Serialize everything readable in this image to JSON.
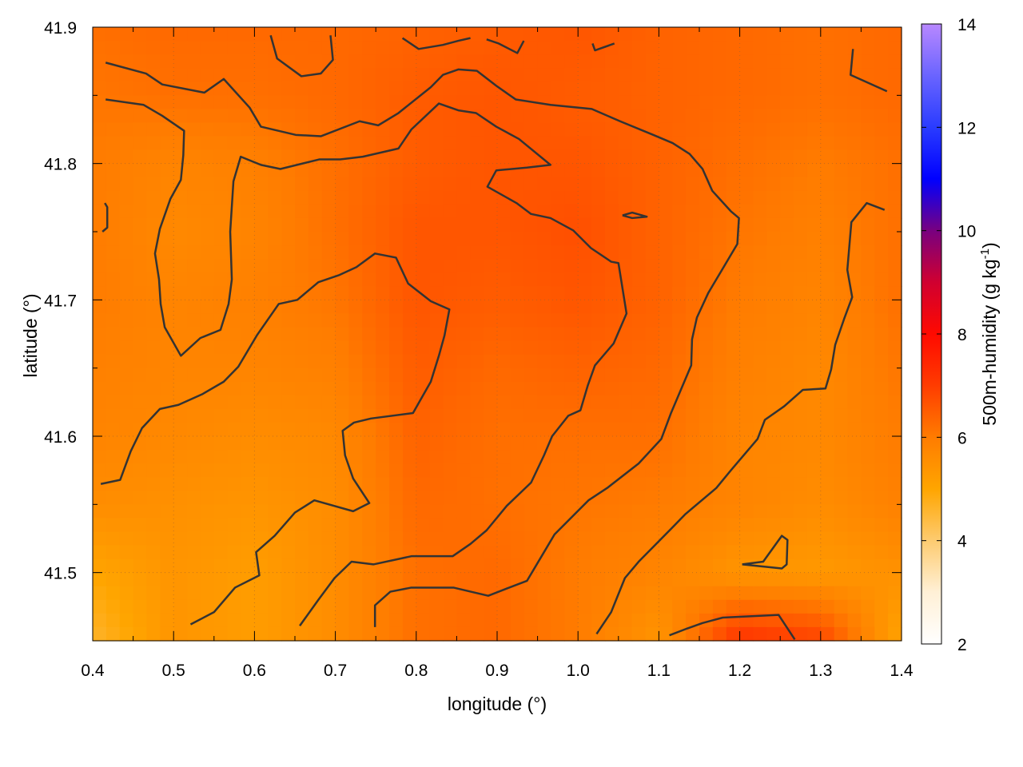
{
  "chart_data": {
    "type": "heatmap",
    "xlabel": "longitude (°)",
    "ylabel": "latitude (°)",
    "colorbar_label": "500m-humidity (g kg",
    "colorbar_label_sup": "-1",
    "colorbar_label_end": ")",
    "xlim": [
      0.4,
      1.4
    ],
    "ylim": [
      41.45,
      41.9
    ],
    "clim": [
      2,
      14
    ],
    "grid": true,
    "x_ticks": [
      "0.4",
      "0.5",
      "0.6",
      "0.7",
      "0.8",
      "0.9",
      "1.0",
      "1.1",
      "1.2",
      "1.3",
      "1.4"
    ],
    "y_ticks": [
      "41.5",
      "41.6",
      "41.7",
      "41.8",
      "41.9"
    ],
    "colorbar_ticks": [
      "2",
      "4",
      "6",
      "8",
      "10",
      "12",
      "14"
    ],
    "colormap": [
      {
        "v": 2,
        "color": "#ffffff"
      },
      {
        "v": 3,
        "color": "#fff0d6"
      },
      {
        "v": 4,
        "color": "#fdcb70"
      },
      {
        "v": 5,
        "color": "#ffa500"
      },
      {
        "v": 6,
        "color": "#ff7c00"
      },
      {
        "v": 7,
        "color": "#ff3c00"
      },
      {
        "v": 8,
        "color": "#ff0a00"
      },
      {
        "v": 9,
        "color": "#d00030"
      },
      {
        "v": 10,
        "color": "#780080"
      },
      {
        "v": 11,
        "color": "#0000ff"
      },
      {
        "v": 12,
        "color": "#2a3cff"
      },
      {
        "v": 13,
        "color": "#6a64ff"
      },
      {
        "v": 14,
        "color": "#b888ff"
      }
    ],
    "grid_lon": [
      0.4,
      0.5,
      0.6,
      0.7,
      0.8,
      0.9,
      1.0,
      1.1,
      1.2,
      1.3,
      1.4
    ],
    "grid_lat": [
      41.9,
      41.85,
      41.8,
      41.75,
      41.7,
      41.65,
      41.6,
      41.55,
      41.5,
      41.45
    ],
    "values": [
      [
        6.2,
        6.3,
        6.3,
        6.3,
        6.4,
        6.5,
        6.6,
        6.4,
        6.3,
        6.2,
        6.3
      ],
      [
        6.1,
        6.2,
        6.2,
        6.3,
        6.5,
        6.6,
        6.5,
        6.4,
        6.3,
        6.2,
        6.3
      ],
      [
        6.0,
        5.8,
        5.9,
        6.2,
        6.5,
        6.6,
        6.6,
        6.4,
        6.2,
        6.0,
        6.2
      ],
      [
        6.0,
        5.7,
        5.8,
        6.2,
        6.6,
        6.6,
        6.7,
        6.4,
        6.1,
        5.9,
        6.2
      ],
      [
        6.0,
        5.8,
        5.9,
        6.1,
        6.6,
        6.5,
        6.6,
        6.4,
        6.0,
        5.8,
        6.2
      ],
      [
        5.9,
        5.8,
        5.8,
        5.9,
        6.5,
        6.3,
        6.4,
        6.3,
        5.9,
        5.7,
        6.1
      ],
      [
        5.8,
        5.7,
        5.6,
        5.7,
        6.4,
        6.2,
        6.2,
        6.2,
        5.8,
        5.7,
        6.0
      ],
      [
        5.6,
        5.5,
        5.4,
        5.6,
        6.3,
        6.2,
        6.1,
        6.0,
        5.8,
        5.6,
        5.9
      ],
      [
        5.0,
        5.4,
        5.2,
        5.6,
        6.2,
        6.3,
        6.0,
        5.8,
        5.4,
        5.3,
        5.5
      ],
      [
        4.6,
        5.4,
        5.2,
        5.6,
        6.2,
        6.3,
        6.0,
        5.4,
        7.2,
        6.9,
        5.0
      ]
    ],
    "contour_color": "#333333",
    "contours": [
      [
        [
          0.416,
          41.874
        ],
        [
          0.466,
          41.866
        ],
        [
          0.486,
          41.858
        ],
        [
          0.538,
          41.852
        ],
        [
          0.562,
          41.862
        ],
        [
          0.594,
          41.841
        ],
        [
          0.608,
          41.827
        ],
        [
          0.651,
          41.821
        ],
        [
          0.682,
          41.82
        ],
        [
          0.73,
          41.831
        ],
        [
          0.753,
          41.828
        ],
        [
          0.778,
          41.837
        ],
        [
          0.818,
          41.856
        ],
        [
          0.833,
          41.865
        ],
        [
          0.852,
          41.869
        ],
        [
          0.875,
          41.868
        ],
        [
          0.899,
          41.857
        ],
        [
          0.923,
          41.847
        ],
        [
          0.966,
          41.843
        ],
        [
          1.017,
          41.84
        ],
        [
          1.052,
          41.831
        ],
        [
          1.093,
          41.821
        ],
        [
          1.117,
          41.815
        ],
        [
          1.138,
          41.807
        ],
        [
          1.154,
          41.796
        ],
        [
          1.166,
          41.78
        ],
        [
          1.189,
          41.765
        ],
        [
          1.199,
          41.76
        ],
        [
          1.197,
          41.741
        ],
        [
          1.179,
          41.723
        ],
        [
          1.161,
          41.705
        ],
        [
          1.147,
          41.687
        ],
        [
          1.141,
          41.671
        ],
        [
          1.14,
          41.652
        ],
        [
          1.115,
          41.617
        ],
        [
          1.103,
          41.598
        ],
        [
          1.075,
          41.58
        ],
        [
          1.036,
          41.562
        ],
        [
          1.013,
          41.553
        ],
        [
          0.971,
          41.528
        ],
        [
          0.958,
          41.515
        ],
        [
          0.937,
          41.494
        ],
        [
          0.915,
          41.489
        ],
        [
          0.889,
          41.483
        ],
        [
          0.846,
          41.489
        ],
        [
          0.794,
          41.489
        ],
        [
          0.768,
          41.486
        ],
        [
          0.749,
          41.476
        ],
        [
          0.749,
          41.46
        ]
      ],
      [
        [
          0.41,
          41.565
        ],
        [
          0.434,
          41.568
        ],
        [
          0.447,
          41.589
        ],
        [
          0.461,
          41.606
        ],
        [
          0.483,
          41.62
        ],
        [
          0.506,
          41.623
        ],
        [
          0.536,
          41.631
        ],
        [
          0.562,
          41.64
        ],
        [
          0.58,
          41.651
        ],
        [
          0.603,
          41.674
        ],
        [
          0.63,
          41.697
        ],
        [
          0.653,
          41.7
        ],
        [
          0.679,
          41.713
        ],
        [
          0.704,
          41.718
        ],
        [
          0.726,
          41.724
        ],
        [
          0.749,
          41.734
        ],
        [
          0.775,
          41.731
        ],
        [
          0.79,
          41.712
        ],
        [
          0.818,
          41.699
        ],
        [
          0.841,
          41.693
        ],
        [
          0.835,
          41.674
        ],
        [
          0.828,
          41.659
        ],
        [
          0.818,
          41.64
        ],
        [
          0.796,
          41.617
        ],
        [
          0.744,
          41.613
        ],
        [
          0.723,
          41.61
        ],
        [
          0.709,
          41.604
        ],
        [
          0.712,
          41.586
        ],
        [
          0.722,
          41.569
        ],
        [
          0.742,
          41.551
        ],
        [
          0.722,
          41.545
        ],
        [
          0.674,
          41.553
        ],
        [
          0.65,
          41.544
        ],
        [
          0.625,
          41.527
        ],
        [
          0.602,
          41.515
        ],
        [
          0.606,
          41.498
        ],
        [
          0.576,
          41.489
        ],
        [
          0.55,
          41.471
        ],
        [
          0.521,
          41.462
        ]
      ],
      [
        [
          0.416,
          41.847
        ],
        [
          0.463,
          41.843
        ],
        [
          0.486,
          41.835
        ],
        [
          0.513,
          41.824
        ],
        [
          0.512,
          41.806
        ],
        [
          0.509,
          41.788
        ],
        [
          0.496,
          41.774
        ],
        [
          0.483,
          41.752
        ],
        [
          0.477,
          41.734
        ],
        [
          0.482,
          41.715
        ],
        [
          0.484,
          41.697
        ],
        [
          0.489,
          41.68
        ],
        [
          0.509,
          41.659
        ],
        [
          0.533,
          41.672
        ],
        [
          0.558,
          41.678
        ],
        [
          0.568,
          41.697
        ],
        [
          0.572,
          41.715
        ],
        [
          0.57,
          41.75
        ],
        [
          0.574,
          41.787
        ],
        [
          0.583,
          41.805
        ],
        [
          0.608,
          41.799
        ],
        [
          0.632,
          41.796
        ],
        [
          0.68,
          41.803
        ],
        [
          0.706,
          41.803
        ],
        [
          0.734,
          41.805
        ],
        [
          0.778,
          41.811
        ],
        [
          0.794,
          41.825
        ],
        [
          0.828,
          41.844
        ],
        [
          0.852,
          41.839
        ],
        [
          0.874,
          41.837
        ],
        [
          0.899,
          41.827
        ],
        [
          0.927,
          41.818
        ],
        [
          0.966,
          41.799
        ],
        [
          0.937,
          41.797
        ],
        [
          0.899,
          41.795
        ],
        [
          0.888,
          41.783
        ],
        [
          0.924,
          41.771
        ],
        [
          0.942,
          41.763
        ],
        [
          0.966,
          41.76
        ],
        [
          0.994,
          41.751
        ],
        [
          1.016,
          41.738
        ],
        [
          1.041,
          41.728
        ],
        [
          1.05,
          41.727
        ],
        [
          1.06,
          41.69
        ],
        [
          1.044,
          41.668
        ],
        [
          1.021,
          41.652
        ],
        [
          1.012,
          41.637
        ],
        [
          1.003,
          41.619
        ],
        [
          0.988,
          41.615
        ],
        [
          0.968,
          41.6
        ],
        [
          0.958,
          41.586
        ],
        [
          0.942,
          41.566
        ],
        [
          0.912,
          41.549
        ],
        [
          0.887,
          41.531
        ],
        [
          0.867,
          41.521
        ],
        [
          0.845,
          41.512
        ],
        [
          0.794,
          41.512
        ],
        [
          0.747,
          41.506
        ],
        [
          0.72,
          41.508
        ],
        [
          0.699,
          41.496
        ],
        [
          0.679,
          41.48
        ],
        [
          0.656,
          41.461
        ]
      ],
      [
        [
          1.379,
          41.766
        ],
        [
          1.357,
          41.771
        ],
        [
          1.338,
          41.757
        ],
        [
          1.333,
          41.722
        ],
        [
          1.339,
          41.702
        ],
        [
          1.329,
          41.686
        ],
        [
          1.318,
          41.667
        ],
        [
          1.313,
          41.649
        ],
        [
          1.306,
          41.635
        ],
        [
          1.278,
          41.634
        ],
        [
          1.255,
          41.622
        ],
        [
          1.231,
          41.612
        ],
        [
          1.222,
          41.598
        ],
        [
          1.189,
          41.575
        ],
        [
          1.171,
          41.562
        ],
        [
          1.133,
          41.543
        ],
        [
          1.115,
          41.532
        ],
        [
          1.075,
          41.508
        ],
        [
          1.058,
          41.496
        ],
        [
          1.041,
          41.471
        ],
        [
          1.023,
          41.455
        ]
      ],
      [
        [
          1.34,
          41.884
        ],
        [
          1.337,
          41.865
        ],
        [
          1.382,
          41.853
        ]
      ],
      [
        [
          0.62,
          41.894
        ],
        [
          0.628,
          41.877
        ],
        [
          0.658,
          41.864
        ],
        [
          0.682,
          41.866
        ],
        [
          0.697,
          41.876
        ],
        [
          0.694,
          41.894
        ]
      ],
      [
        [
          0.783,
          41.892
        ],
        [
          0.803,
          41.884
        ],
        [
          0.833,
          41.887
        ],
        [
          0.852,
          41.89
        ],
        [
          0.867,
          41.892
        ]
      ],
      [
        [
          0.887,
          41.891
        ],
        [
          0.902,
          41.888
        ],
        [
          0.925,
          41.881
        ],
        [
          0.933,
          41.89
        ]
      ],
      [
        [
          1.018,
          41.888
        ],
        [
          1.021,
          41.883
        ],
        [
          1.045,
          41.888
        ]
      ],
      [
        [
          0.415,
          41.771
        ],
        [
          0.418,
          41.768
        ],
        [
          0.418,
          41.753
        ],
        [
          0.412,
          41.75
        ]
      ],
      [
        [
          1.055,
          41.762
        ],
        [
          1.067,
          41.764
        ],
        [
          1.085,
          41.761
        ],
        [
          1.067,
          41.76
        ],
        [
          1.055,
          41.762
        ]
      ],
      [
        [
          1.203,
          41.506
        ],
        [
          1.229,
          41.508
        ],
        [
          1.252,
          41.527
        ],
        [
          1.259,
          41.524
        ],
        [
          1.258,
          41.506
        ],
        [
          1.252,
          41.503
        ],
        [
          1.203,
          41.506
        ]
      ],
      [
        [
          1.113,
          41.454
        ],
        [
          1.135,
          41.459
        ],
        [
          1.154,
          41.463
        ],
        [
          1.179,
          41.467
        ],
        [
          1.248,
          41.469
        ],
        [
          1.268,
          41.451
        ]
      ]
    ]
  }
}
